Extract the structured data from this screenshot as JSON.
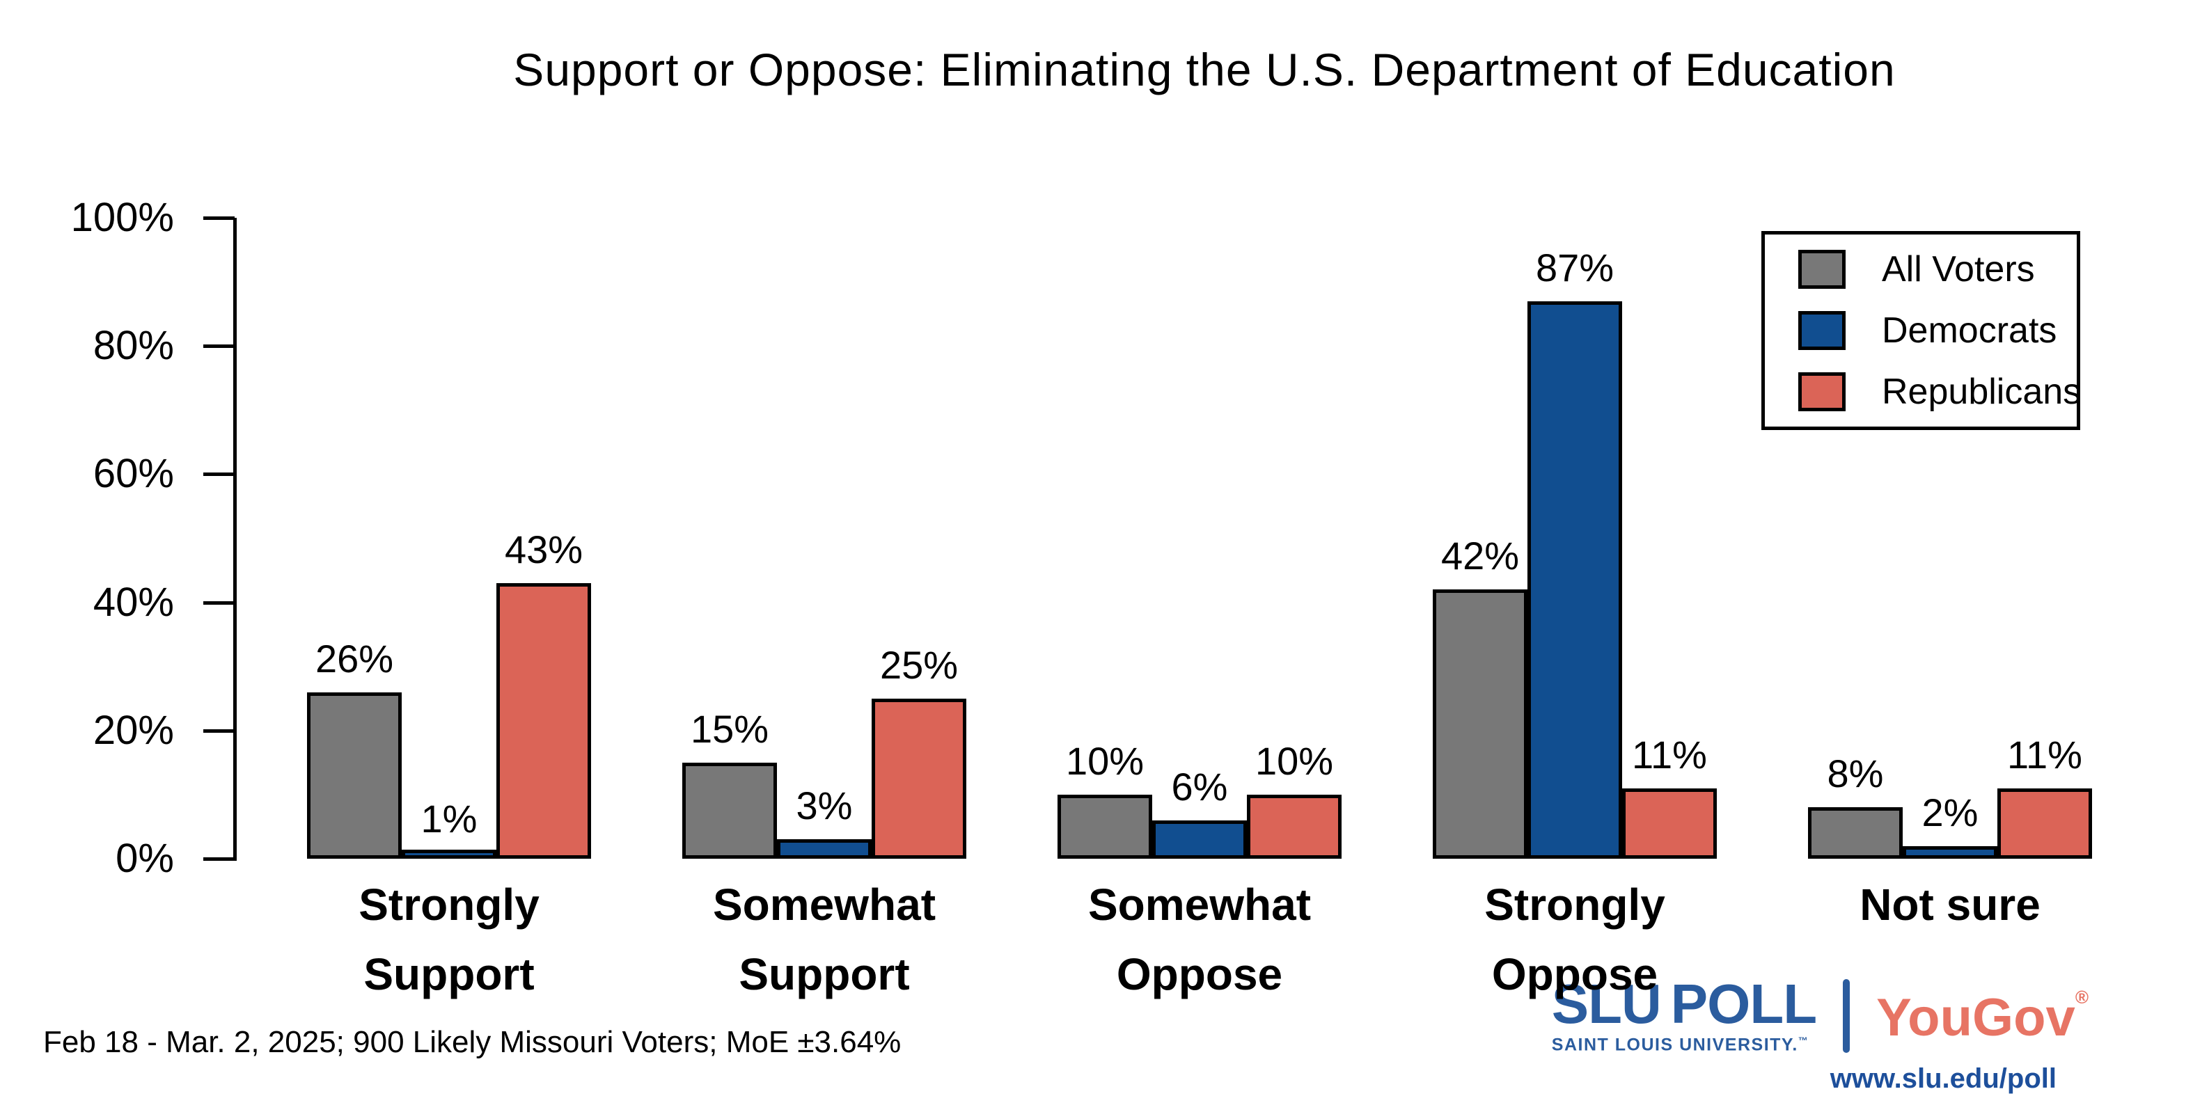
{
  "chart_data": {
    "type": "bar",
    "title": "Support or Oppose: Eliminating the U.S. Department of Education",
    "categories": [
      "Strongly Support",
      "Somewhat Support",
      "Somewhat Oppose",
      "Strongly Oppose",
      "Not sure"
    ],
    "category_lines": [
      [
        "Strongly",
        "Support"
      ],
      [
        "Somewhat",
        "Support"
      ],
      [
        "Somewhat",
        "Oppose"
      ],
      [
        "Strongly",
        "Oppose"
      ],
      [
        "Not sure"
      ]
    ],
    "series": [
      {
        "name": "All Voters",
        "color": "#787878",
        "values": [
          26,
          15,
          10,
          42,
          8
        ]
      },
      {
        "name": "Democrats",
        "color": "#114E90",
        "values": [
          1,
          3,
          6,
          87,
          2
        ]
      },
      {
        "name": "Republicans",
        "color": "#DB6457",
        "values": [
          43,
          25,
          10,
          11,
          11
        ]
      }
    ],
    "value_label_format": "{v}%",
    "yticks": [
      0,
      20,
      40,
      60,
      80,
      100
    ],
    "ytick_labels": [
      "0%",
      "20%",
      "40%",
      "60%",
      "80%",
      "100%"
    ],
    "ylim": [
      0,
      100
    ],
    "grid": false,
    "bar_outline_color": "#000000",
    "legend_position": "top-right",
    "legend_entries": [
      "All Voters",
      "Democrats",
      "Republicans"
    ]
  },
  "footer": {
    "source": "Feb 18 - Mar. 2, 2025; 900 Likely Missouri Voters; MoE ±3.64%"
  },
  "branding": {
    "slu": "SLU",
    "poll": "POLL",
    "slu_sub": "SAINT LOUIS UNIVERSITY.",
    "slu_tm": "™",
    "yougov": "YouGov",
    "yougov_reg": "®",
    "url": "www.slu.edu/poll",
    "slu_blue": "#2B5C9E",
    "yougov_red": "#E77464",
    "url_blue": "#1D4F9B"
  }
}
